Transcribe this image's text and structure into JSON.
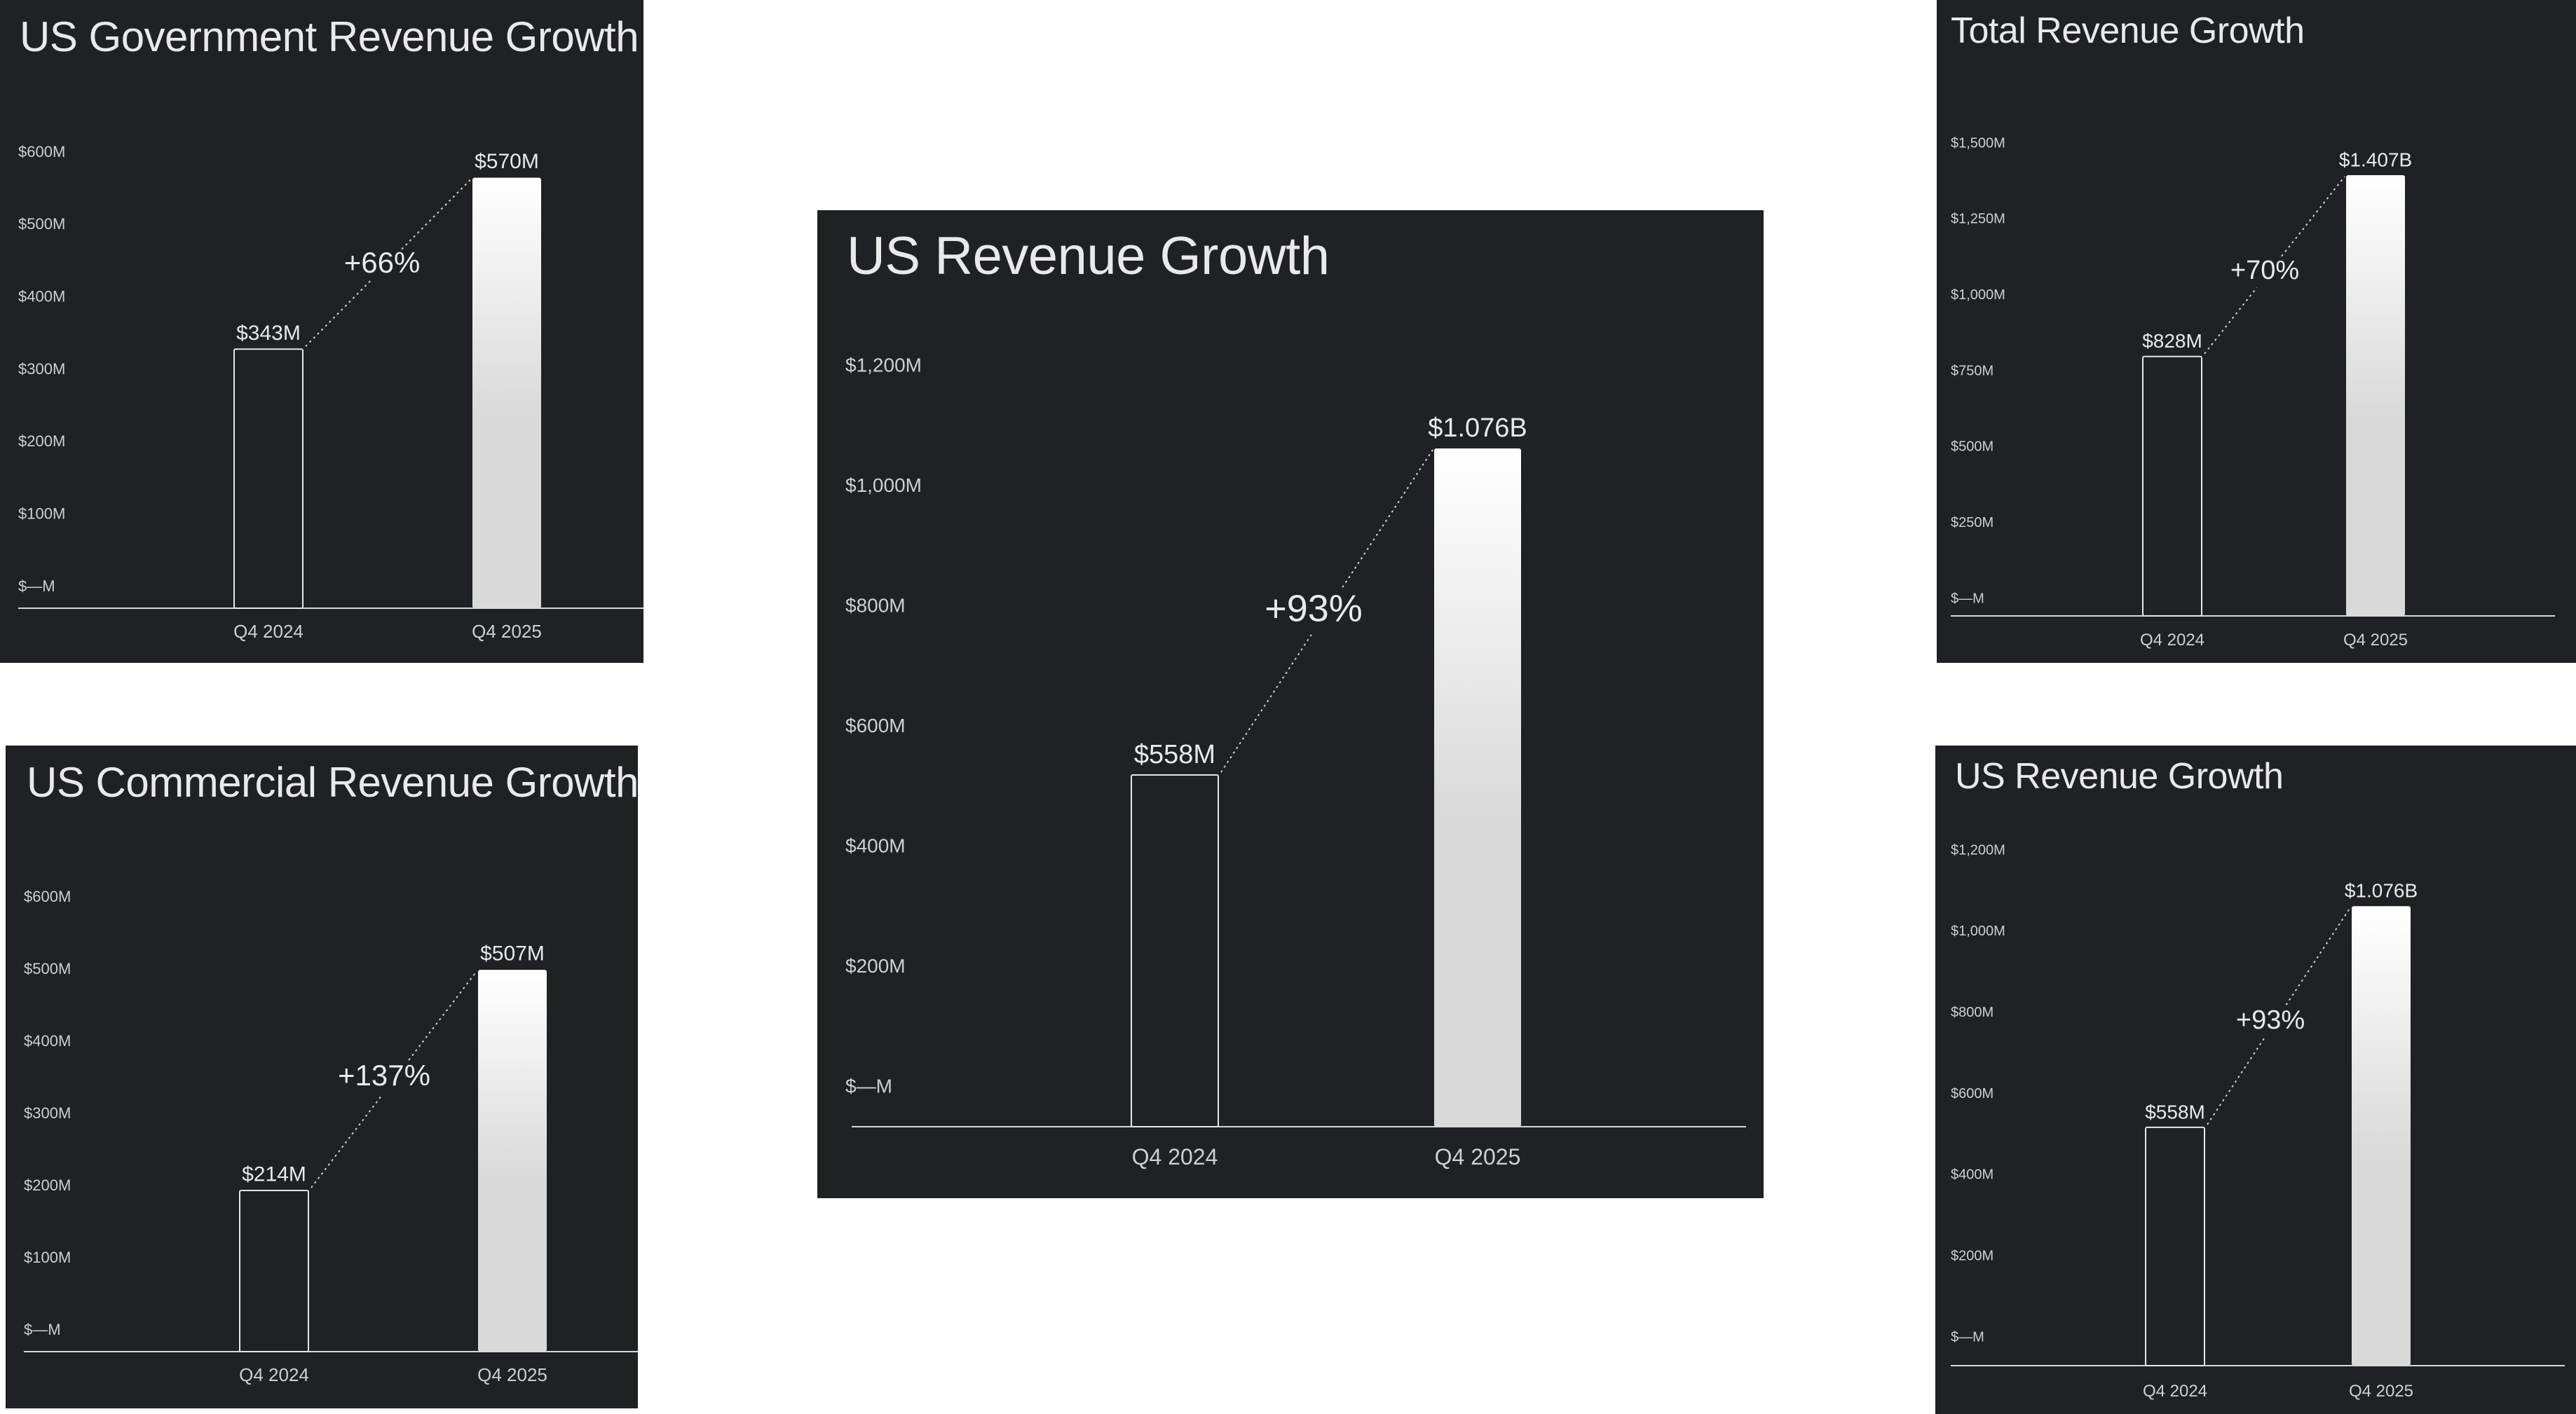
{
  "colors": {
    "panel_bg": "#1f2124",
    "text": "#e9e9e9",
    "tick_text": "#cfcfcf",
    "axis": "#d8d8d8",
    "bar_outline": "#e6e6e6",
    "bar_gradient_top": "#ffffff",
    "bar_gradient_bottom": "#d9d9d9",
    "dotted_line": "#cfcfcf"
  },
  "chart_data": [
    {
      "id": "gov",
      "type": "bar",
      "title": "US Government Revenue Growth",
      "xlabel": "",
      "ylabel": "",
      "categories": [
        "Q4 2024",
        "Q4 2025"
      ],
      "values": [
        343,
        570
      ],
      "value_labels": [
        "$343M",
        "$570M"
      ],
      "growth_label": "+66%",
      "ylim": [
        0,
        600
      ],
      "yticks": [
        0,
        100,
        200,
        300,
        400,
        500,
        600
      ],
      "ytick_labels": [
        "$—M",
        "$100M",
        "$200M",
        "$300M",
        "$400M",
        "$500M",
        "$600M"
      ],
      "grid": false,
      "legend": "none"
    },
    {
      "id": "com",
      "type": "bar",
      "title": "US Commercial Revenue Growth",
      "xlabel": "",
      "ylabel": "",
      "categories": [
        "Q4 2024",
        "Q4 2025"
      ],
      "values": [
        214,
        507
      ],
      "value_labels": [
        "$214M",
        "$507M"
      ],
      "growth_label": "+137%",
      "ylim": [
        0,
        600
      ],
      "yticks": [
        0,
        100,
        200,
        300,
        400,
        500,
        600
      ],
      "ytick_labels": [
        "$—M",
        "$100M",
        "$200M",
        "$300M",
        "$400M",
        "$500M",
        "$600M"
      ],
      "grid": false,
      "legend": "none"
    },
    {
      "id": "main",
      "type": "bar",
      "title": "US Revenue Growth",
      "xlabel": "",
      "ylabel": "",
      "categories": [
        "Q4 2024",
        "Q4 2025"
      ],
      "values": [
        558,
        1076
      ],
      "value_labels": [
        "$558M",
        "$1.076B"
      ],
      "growth_label": "+93%",
      "ylim": [
        0,
        1200
      ],
      "yticks": [
        0,
        200,
        400,
        600,
        800,
        1000,
        1200
      ],
      "ytick_labels": [
        "$—M",
        "$200M",
        "$400M",
        "$600M",
        "$800M",
        "$1,000M",
        "$1,200M"
      ],
      "grid": false,
      "legend": "none"
    },
    {
      "id": "tot",
      "type": "bar",
      "title": "Total Revenue Growth",
      "xlabel": "",
      "ylabel": "",
      "categories": [
        "Q4 2024",
        "Q4 2025"
      ],
      "values": [
        828,
        1407
      ],
      "value_labels": [
        "$828M",
        "$1.407B"
      ],
      "growth_label": "+70%",
      "ylim": [
        0,
        1500
      ],
      "yticks": [
        0,
        250,
        500,
        750,
        1000,
        1250,
        1500
      ],
      "ytick_labels": [
        "$—M",
        "$250M",
        "$500M",
        "$750M",
        "$1,000M",
        "$1,250M",
        "$1,500M"
      ],
      "grid": false,
      "legend": "none"
    },
    {
      "id": "us2",
      "type": "bar",
      "title": "US Revenue Growth",
      "xlabel": "",
      "ylabel": "",
      "categories": [
        "Q4 2024",
        "Q4 2025"
      ],
      "values": [
        558,
        1076
      ],
      "value_labels": [
        "$558M",
        "$1.076B"
      ],
      "growth_label": "+93%",
      "ylim": [
        0,
        1200
      ],
      "yticks": [
        0,
        200,
        400,
        600,
        800,
        1000,
        1200
      ],
      "ytick_labels": [
        "$—M",
        "$200M",
        "$400M",
        "$600M",
        "$800M",
        "$1,000M",
        "$1,200M"
      ],
      "grid": false,
      "legend": "none"
    }
  ]
}
